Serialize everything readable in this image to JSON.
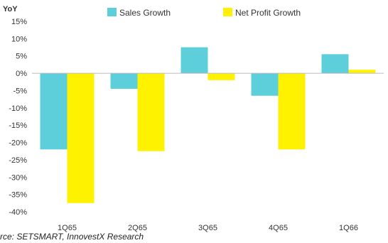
{
  "chart_data": {
    "type": "bar",
    "title": "",
    "ylabel": "YoY",
    "xlabel": "",
    "categories": [
      "1Q65",
      "2Q65",
      "3Q65",
      "4Q65",
      "1Q66"
    ],
    "series": [
      {
        "name": "Sales Growth",
        "color": "#5ccfdb",
        "values": [
          -22,
          -4.5,
          7.5,
          -6.5,
          5.5
        ]
      },
      {
        "name": "Net Profit Growth",
        "color": "#fff200",
        "values": [
          -37.5,
          -22.5,
          -2,
          -22,
          1
        ]
      }
    ],
    "ylim": [
      -40,
      15
    ],
    "yticks": [
      15,
      10,
      5,
      0,
      -5,
      -10,
      -15,
      -20,
      -25,
      -30,
      -35,
      -40
    ],
    "ytick_labels": [
      "15%",
      "10%",
      "5%",
      "0%",
      "-5%",
      "-10%",
      "-15%",
      "-20%",
      "-25%",
      "-30%",
      "-35%",
      "-40%"
    ],
    "grid": false,
    "legend_position": "top"
  },
  "source": "rce: SETSMART, InnovestX Research"
}
